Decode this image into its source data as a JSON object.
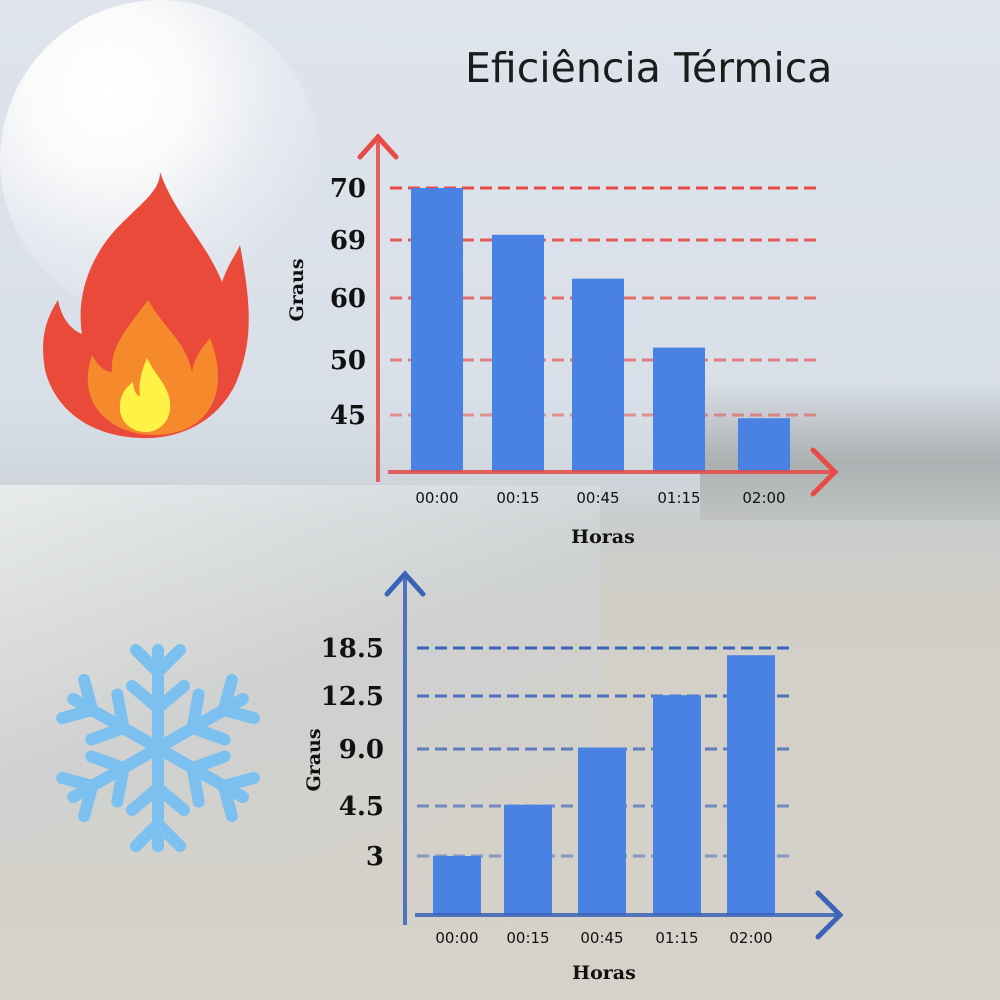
{
  "title": "Eficiência Térmica",
  "colors": {
    "bar": "#4a82e4",
    "hot_axis": "#e84a45",
    "cold_axis": "#3b63b8"
  },
  "icons": {
    "hot": "fire-icon",
    "cold": "snowflake-icon"
  },
  "chart_data": [
    {
      "type": "bar",
      "title": "",
      "xlabel": "Horas",
      "ylabel": "Graus",
      "categories": [
        "00:00",
        "00:15",
        "00:45",
        "01:15",
        "02:00"
      ],
      "values": [
        70,
        69.1,
        63,
        52,
        44.7
      ],
      "yticks": [
        70,
        69,
        60,
        50,
        45
      ],
      "ytick_labels": [
        "70",
        "69",
        "60",
        "50",
        "45"
      ],
      "grid": true,
      "axis_scale": "non-uniform tick spacing"
    },
    {
      "type": "bar",
      "title": "",
      "xlabel": "Horas",
      "ylabel": "Graus",
      "categories": [
        "00:00",
        "00:15",
        "00:45",
        "01:15",
        "02:00"
      ],
      "values": [
        3,
        4.6,
        9.1,
        12.6,
        17.6
      ],
      "yticks": [
        18.5,
        12.5,
        9.0,
        4.5,
        3
      ],
      "ytick_labels": [
        "18.5",
        "12.5",
        "9.0",
        "4.5",
        "3"
      ],
      "grid": true,
      "axis_scale": "non-uniform tick spacing"
    }
  ]
}
